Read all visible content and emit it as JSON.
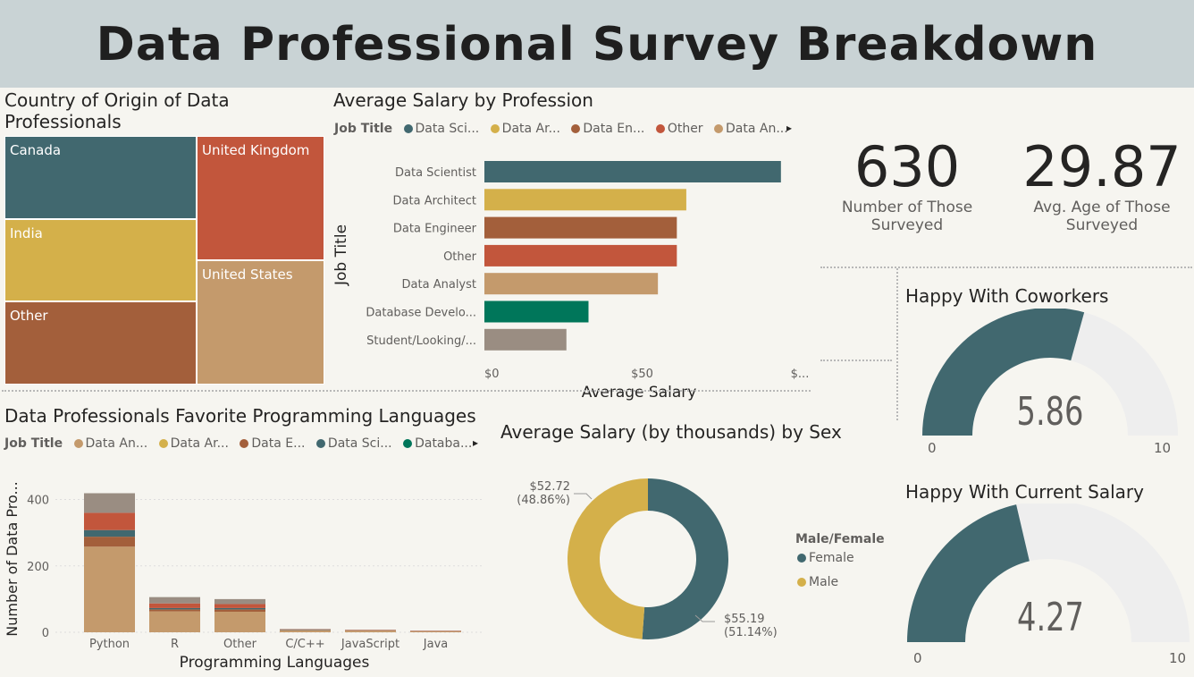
{
  "page_title": "Data Professional Survey Breakdown",
  "colors": {
    "banner": "#c9d3d5",
    "background": "#f6f5f0",
    "teal": "#41686f",
    "mustard": "#d4b04a",
    "brown": "#a35f3b",
    "red": "#c2563c",
    "tan": "#c49a6c",
    "green": "#00765a",
    "gray": "#9a8d82",
    "gauge_track": "#eeeeee"
  },
  "treemap": {
    "title_line1": "Country of Origin of Data",
    "title_line2": "Professionals",
    "items": [
      {
        "label": "Canada",
        "color": "#41686f"
      },
      {
        "label": "United Kingdom",
        "color": "#c2563c"
      },
      {
        "label": "India",
        "color": "#d4b04a"
      },
      {
        "label": "United States",
        "color": "#c49a6c"
      },
      {
        "label": "Other",
        "color": "#a35f3b"
      }
    ]
  },
  "salary_by_profession": {
    "title": "Average Salary by Profession",
    "legend_label": "Job Title",
    "legend_items": [
      {
        "label": "Data Sci...",
        "color": "#41686f"
      },
      {
        "label": "Data Ar...",
        "color": "#d4b04a"
      },
      {
        "label": "Data En...",
        "color": "#a35f3b"
      },
      {
        "label": "Other",
        "color": "#c2563c"
      },
      {
        "label": "Data An...",
        "color": "#c49a6c"
      }
    ],
    "legend_arrow": "▸",
    "y_axis_title": "Job Title",
    "x_axis_title": "Average Salary",
    "x_ticks": [
      "$0",
      "$50",
      "$..."
    ]
  },
  "kpi": {
    "count_value": "630",
    "count_label_line1": "Number of Those",
    "count_label_line2": "Surveyed",
    "age_value": "29.87",
    "age_label_line1": "Avg. Age of Those",
    "age_label_line2": "Surveyed"
  },
  "gauge_coworkers": {
    "title": "Happy With Coworkers",
    "value": 5.86,
    "display": "5.86",
    "min_label": "0",
    "max_label": "10",
    "min": 0,
    "max": 10
  },
  "gauge_salary": {
    "title": "Happy With Current Salary",
    "value": 4.27,
    "display": "4.27",
    "min_label": "0",
    "max_label": "10",
    "min": 0,
    "max": 10
  },
  "languages": {
    "title": "Data Professionals Favorite Programming Languages",
    "legend_label": "Job Title",
    "legend_items": [
      {
        "label": "Data An...",
        "color": "#c49a6c"
      },
      {
        "label": "Data Ar...",
        "color": "#d4b04a"
      },
      {
        "label": "Data E...",
        "color": "#a35f3b"
      },
      {
        "label": "Data Sci...",
        "color": "#41686f"
      },
      {
        "label": "Databa...",
        "color": "#00765a"
      }
    ],
    "legend_arrow": "▸",
    "y_axis_title": "Number of Data Pro...",
    "x_axis_title": "Programming Languages"
  },
  "donut": {
    "title": "Average Salary (by thousands) by Sex",
    "legend_title": "Male/Female",
    "female_label": "Female",
    "male_label": "Male",
    "male_value": "$52.72",
    "male_pct": "(48.86%)",
    "female_value": "$55.19",
    "female_pct": "(51.14%)"
  },
  "chart_data": [
    {
      "type": "bar",
      "orientation": "horizontal",
      "title": "Average Salary by Profession",
      "xlabel": "Average Salary",
      "ylabel": "Job Title",
      "categories": [
        "Data Scientist",
        "Data Architect",
        "Data Engineer",
        "Other",
        "Data Analyst",
        "Database Develo...",
        "Student/Looking/..."
      ],
      "values": [
        94,
        64,
        61,
        61,
        55,
        33,
        26
      ],
      "colors": [
        "#41686f",
        "#d4b04a",
        "#a35f3b",
        "#c2563c",
        "#c49a6c",
        "#00765a",
        "#9a8d82"
      ],
      "xlim": [
        0,
        100
      ]
    },
    {
      "type": "bar",
      "stacked": true,
      "title": "Data Professionals Favorite Programming Languages",
      "xlabel": "Programming Languages",
      "ylabel": "Number of Data Pro...",
      "categories": [
        "Python",
        "R",
        "Other",
        "C/C++",
        "JavaScript",
        "Java"
      ],
      "y_ticks": [
        "0",
        "200",
        "400"
      ],
      "ylim": [
        0,
        450
      ],
      "series": [
        {
          "name": "Data An...",
          "color": "#c49a6c",
          "values": [
            258,
            63,
            62,
            6,
            5,
            3
          ]
        },
        {
          "name": "Data E...",
          "color": "#a35f3b",
          "values": [
            30,
            6,
            7,
            1,
            1,
            0
          ]
        },
        {
          "name": "Data Sci...",
          "color": "#41686f",
          "values": [
            20,
            4,
            4,
            1,
            0,
            0
          ]
        },
        {
          "color": "#c2563c",
          "values": [
            52,
            14,
            12,
            1,
            1,
            1
          ]
        },
        {
          "color": "#9a8d82",
          "values": [
            59,
            19,
            15,
            1,
            1,
            1
          ]
        }
      ]
    },
    {
      "type": "pie",
      "donut": true,
      "title": "Average Salary (by thousands) by Sex",
      "labels": [
        "Female",
        "Male"
      ],
      "values": [
        55.19,
        52.72
      ],
      "percents": [
        51.14,
        48.86
      ],
      "colors": [
        "#41686f",
        "#d4b04a"
      ]
    }
  ]
}
